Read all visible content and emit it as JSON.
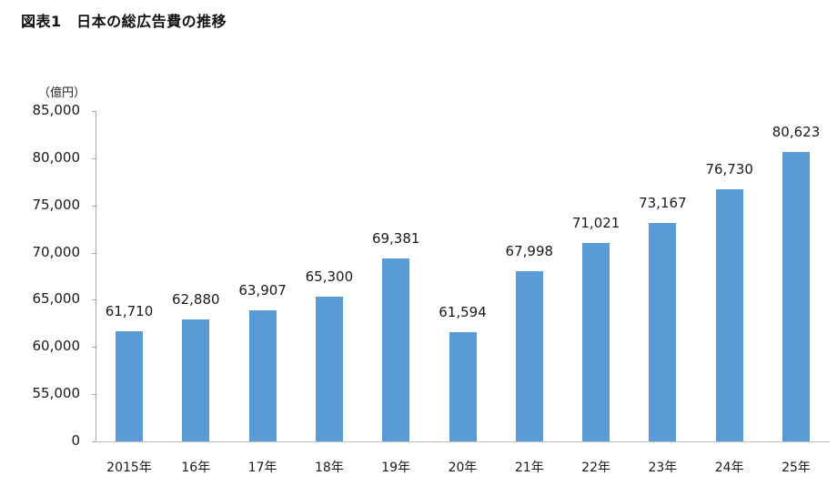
{
  "title": "図表1　日本の総広告費の推移",
  "unit_label": "（億円）",
  "colors": {
    "bar": "#5b9bd5",
    "axis": "#a6a6a6"
  },
  "chart_data": {
    "type": "bar",
    "title": "図表1　日本の総広告費の推移",
    "xlabel": "",
    "ylabel": "（億円）",
    "categories": [
      "2015年",
      "16年",
      "17年",
      "18年",
      "19年",
      "20年",
      "21年",
      "22年",
      "23年",
      "24年",
      "25年"
    ],
    "values": [
      61710,
      62880,
      63907,
      65300,
      69381,
      61594,
      67998,
      71021,
      73167,
      76730,
      80623
    ],
    "value_labels": [
      "61,710",
      "62,880",
      "63,907",
      "65,300",
      "69,381",
      "61,594",
      "67,998",
      "71,021",
      "73,167",
      "76,730",
      "80,623"
    ],
    "yticks": [
      "0",
      "55,000",
      "60,000",
      "65,000",
      "70,000",
      "75,000",
      "80,000",
      "85,000"
    ],
    "ylim": [
      0,
      85000
    ],
    "axis_break": "0 to 50,000 omitted (broken scale)",
    "grid": false,
    "legend": null
  }
}
